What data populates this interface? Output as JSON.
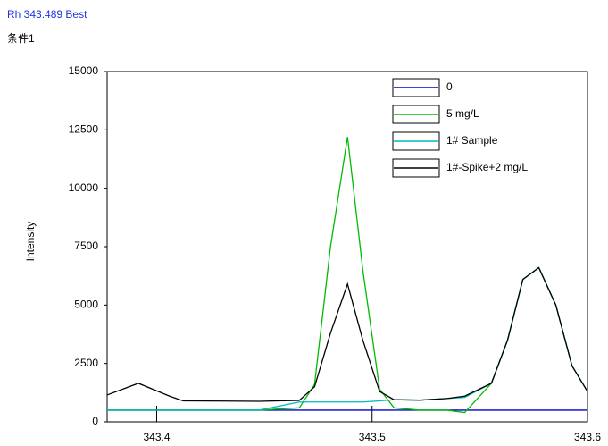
{
  "header": {
    "title": "Rh 343.489 Best",
    "subtitle": "条件1"
  },
  "chart_data": {
    "type": "line",
    "y_label": "Intensity",
    "x": [
      343.377,
      343.3915,
      343.406,
      343.4123,
      343.4475,
      343.4662,
      343.4733,
      343.4807,
      343.4886,
      343.4957,
      343.5035,
      343.5102,
      343.5222,
      343.5347,
      343.543,
      343.5554,
      343.5629,
      343.57,
      343.5774,
      343.5853,
      343.5928,
      343.6
    ],
    "series": [
      {
        "name": "0",
        "color": "#0000cc",
        "values": [
          500,
          500,
          500,
          500,
          500,
          500,
          500,
          500,
          500,
          500,
          500,
          500,
          500,
          500,
          500,
          500,
          500,
          500,
          500,
          500,
          500,
          500
        ]
      },
      {
        "name": "5 mg/L",
        "color": "#00bb00",
        "values": [
          500,
          500,
          500,
          500,
          500,
          600,
          1600,
          7500,
          12200,
          6500,
          1400,
          600,
          500,
          500,
          400,
          1650,
          3500,
          6100,
          6600,
          5000,
          2400,
          1300
        ]
      },
      {
        "name": "1# Sample",
        "color": "#00bbbb",
        "values": [
          500,
          500,
          500,
          500,
          500,
          850,
          850,
          850,
          850,
          850,
          900,
          950,
          930,
          1000,
          1050,
          1650,
          3500,
          6100,
          6600,
          5000,
          2400,
          1300
        ]
      },
      {
        "name": "1#-Spike+2 mg/L",
        "color": "#000000",
        "values": [
          1150,
          1650,
          1100,
          900,
          880,
          920,
          1500,
          3800,
          5900,
          3500,
          1300,
          950,
          930,
          1000,
          1100,
          1650,
          3500,
          6100,
          6600,
          5000,
          2400,
          1300
        ]
      }
    ],
    "xlim": [
      343.377,
      343.6
    ],
    "xticks": [
      343.4,
      343.5,
      343.6
    ],
    "ylim": [
      0,
      15000
    ],
    "yticks": [
      0,
      2500,
      5000,
      7500,
      10000,
      12500,
      15000
    ],
    "legend": "upper-right"
  }
}
